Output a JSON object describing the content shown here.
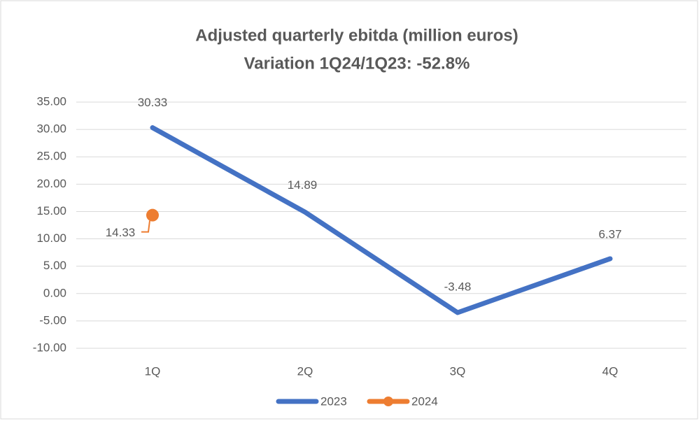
{
  "chart_data": {
    "type": "line",
    "title": "Adjusted quarterly ebitda (million euros)",
    "subtitle": "Variation 1Q24/1Q23: -52.8%",
    "categories": [
      "1Q",
      "2Q",
      "3Q",
      "4Q"
    ],
    "series": [
      {
        "name": "2023",
        "color": "#4472c4",
        "values": [
          30.33,
          14.89,
          -3.48,
          6.37
        ]
      },
      {
        "name": "2024",
        "color": "#ed7d31",
        "values": [
          14.33,
          null,
          null,
          null
        ]
      }
    ],
    "ylim": [
      -10,
      35
    ],
    "yticks": [
      {
        "value": -10,
        "label": "-10.00"
      },
      {
        "value": -5,
        "label": "-5.00"
      },
      {
        "value": 0,
        "label": "0.00"
      },
      {
        "value": 5,
        "label": "5.00"
      },
      {
        "value": 10,
        "label": "10.00"
      },
      {
        "value": 15,
        "label": "15.00"
      },
      {
        "value": 20,
        "label": "20.00"
      },
      {
        "value": 25,
        "label": "25.00"
      },
      {
        "value": 30,
        "label": "30.00"
      },
      {
        "value": 35,
        "label": "35.00"
      }
    ],
    "grid": true,
    "legend": "bottom"
  }
}
